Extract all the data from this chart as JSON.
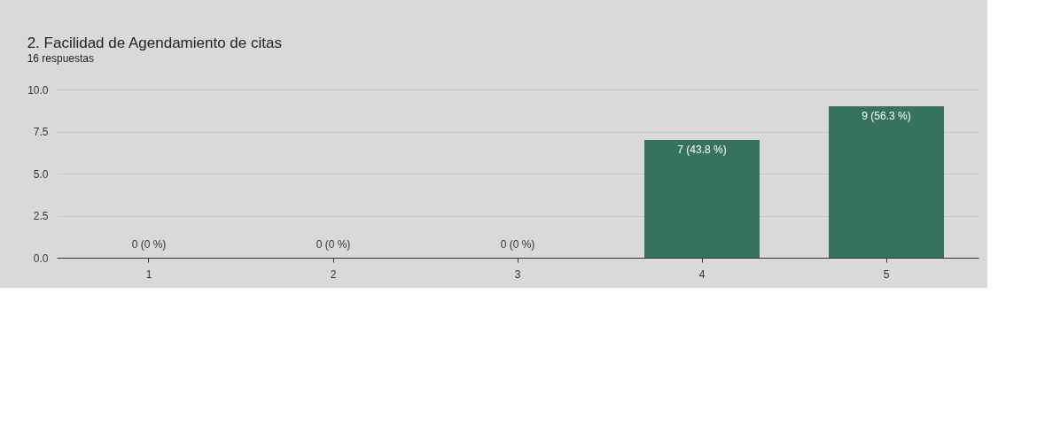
{
  "chart_data": {
    "type": "bar",
    "title": "2. Facilidad de Agendamiento de citas",
    "subtitle": "16 respuestas",
    "categories": [
      "1",
      "2",
      "3",
      "4",
      "5"
    ],
    "values": [
      0,
      0,
      0,
      7,
      9
    ],
    "value_labels": [
      "0 (0 %)",
      "0 (0 %)",
      "0 (0 %)",
      "7 (43.8 %)",
      "9 (56.3 %)"
    ],
    "color": "#35725f",
    "ylim": [
      0,
      10
    ],
    "yticks": [
      {
        "value": 0,
        "label": "0.0"
      },
      {
        "value": 2.5,
        "label": "2.5"
      },
      {
        "value": 5,
        "label": "5.0"
      },
      {
        "value": 7.5,
        "label": "7.5"
      },
      {
        "value": 10,
        "label": "10.0"
      }
    ],
    "grid": "y"
  }
}
